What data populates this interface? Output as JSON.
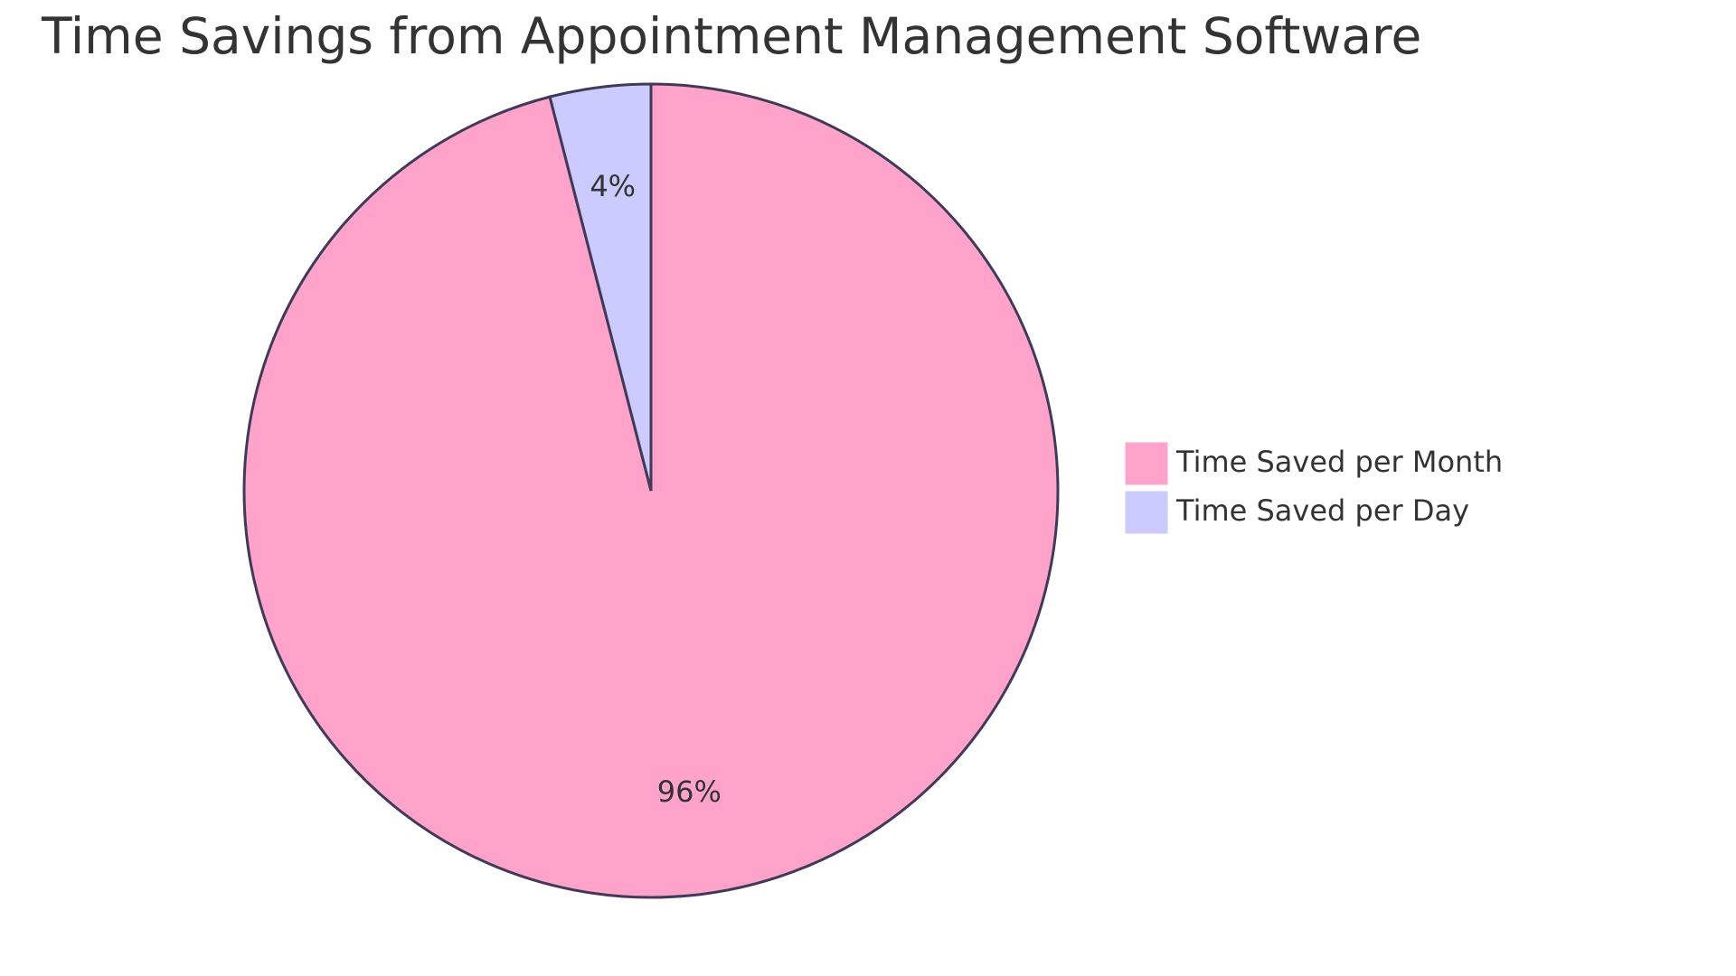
{
  "chart_data": {
    "type": "pie",
    "title": "Time Savings from Appointment Management Software",
    "legend_position": "right",
    "series": [
      {
        "name": "Time Saved per Month",
        "value": 96,
        "label": "96%",
        "color": "#ffa3cb"
      },
      {
        "name": "Time Saved per Day",
        "value": 4,
        "label": "4%",
        "color": "#cbcbff"
      }
    ],
    "stroke_color": "#3f3a5a"
  }
}
